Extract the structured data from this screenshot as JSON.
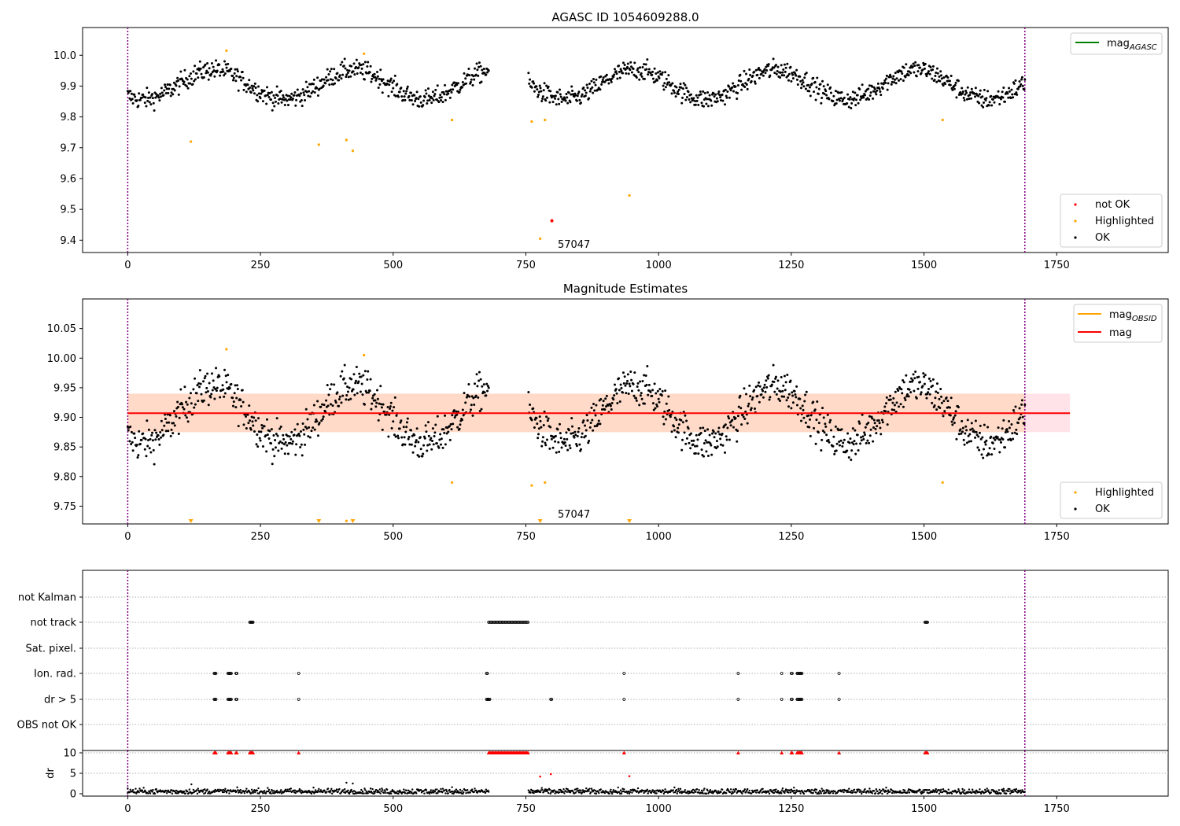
{
  "figure": {
    "colors": {
      "ok": "#000000",
      "highlight": "#ffa500",
      "not_ok": "#ff0000",
      "agasc_line": "#008000",
      "mag_line": "#ff0000",
      "band_inner": "#ffdac8",
      "band_outer": "#ffe3e8",
      "vline": "#800080",
      "grid": "#b0b0b0"
    }
  },
  "chart_data": [
    {
      "type": "scatter",
      "title": "AGASC ID 1054609288.0",
      "xlim": [
        -85,
        1960
      ],
      "ylim": [
        9.36,
        10.09
      ],
      "xticks": [
        0,
        250,
        500,
        750,
        1000,
        1250,
        1500,
        1750
      ],
      "yticks": [
        9.4,
        9.5,
        9.6,
        9.7,
        9.8,
        9.9,
        10.0
      ],
      "ytick_labels": [
        "9.4",
        "9.5",
        "9.6",
        "9.7",
        "9.8",
        "9.9",
        "10.0"
      ],
      "vlines": [
        0,
        1690
      ],
      "annotation": {
        "text": "57047",
        "x": 810,
        "y": 9.365
      },
      "series": [
        {
          "name": "mag_AGASC",
          "kind": "line",
          "sub": "AGASC",
          "legend_loc": "upper right",
          "x": [],
          "y": []
        },
        {
          "name": "not OK",
          "kind": "points",
          "color": "#ff0000",
          "x": [
            799
          ],
          "y": [
            9.463
          ]
        },
        {
          "name": "Highlighted",
          "kind": "points",
          "color": "#ffa500",
          "x": [
            119,
            186,
            360,
            412,
            424,
            445,
            611,
            761,
            777,
            786,
            945,
            1535
          ],
          "y": [
            9.72,
            10.015,
            9.71,
            9.725,
            9.69,
            10.005,
            9.79,
            9.785,
            9.405,
            9.79,
            9.545,
            9.79
          ]
        },
        {
          "name": "OK",
          "kind": "points",
          "color": "#000000",
          "wave_from": [
            0,
            680,
            755,
            1690
          ],
          "mean": 9.905,
          "amp": 0.048,
          "period": 265,
          "phase": 95,
          "noise": 0.016
        }
      ],
      "legend2_loc": "lower right"
    },
    {
      "type": "scatter",
      "title": "Magnitude Estimates",
      "xlim": [
        -85,
        1960
      ],
      "ylim": [
        9.72,
        10.1
      ],
      "xticks": [
        0,
        250,
        500,
        750,
        1000,
        1250,
        1500,
        1750
      ],
      "yticks": [
        9.75,
        9.8,
        9.85,
        9.9,
        9.95,
        10.0,
        10.05
      ],
      "ytick_labels": [
        "9.75",
        "9.80",
        "9.85",
        "9.90",
        "9.95",
        "10.00",
        "10.05"
      ],
      "vlines": [
        0,
        1690
      ],
      "annotation": {
        "text": "57047",
        "x": 810,
        "y": 9.725
      },
      "mag": 9.907,
      "band_inner": [
        9.875,
        9.94
      ],
      "band_outer": [
        9.875,
        9.94
      ],
      "band_x": [
        0,
        1775
      ],
      "series": [
        {
          "name": "mag_OBSID",
          "kind": "line",
          "sub": "OBSID",
          "color": "#ffa500",
          "x": [],
          "y": []
        },
        {
          "name": "mag",
          "kind": "line",
          "color": "#ff0000",
          "x": [
            0,
            1775
          ],
          "y": [
            9.907,
            9.907
          ]
        },
        {
          "name": "Highlighted",
          "kind": "points",
          "color": "#ffa500",
          "x": [
            186,
            445,
            611,
            761,
            786,
            1535,
            412
          ],
          "y": [
            10.015,
            10.005,
            9.79,
            9.785,
            9.79,
            9.79,
            9.725
          ]
        },
        {
          "name": "Highlighted-below",
          "kind": "markers-down",
          "color": "#ffa500",
          "x": [
            119,
            360,
            424,
            777,
            945
          ],
          "y": [
            9.72,
            9.72,
            9.72,
            9.72,
            9.72
          ]
        },
        {
          "name": "OK",
          "kind": "points",
          "color": "#000000"
        }
      ],
      "legend2_loc": "lower right"
    },
    {
      "type": "scatter",
      "title": "",
      "xlim": [
        -85,
        1960
      ],
      "flag_rows": [
        "not Kalman",
        "not track",
        "Sat. pixel.",
        "Ion. rad.",
        "dr > 5",
        "OBS not OK"
      ],
      "flags": {
        "not track": [
          [
            230,
            236
          ],
          [
            680,
            755
          ],
          [
            1502,
            1507
          ]
        ],
        "Ion. rad.": [
          [
            163,
            166
          ],
          [
            189,
            196
          ],
          [
            204,
            206
          ],
          [
            322,
            323
          ],
          [
            676,
            678
          ],
          [
            935,
            936
          ],
          [
            1150,
            1151
          ],
          [
            1232,
            1233
          ],
          [
            1250,
            1252
          ],
          [
            1261,
            1270
          ],
          [
            1340,
            1341
          ]
        ],
        "dr > 5": [
          [
            163,
            166
          ],
          [
            189,
            196
          ],
          [
            204,
            206
          ],
          [
            322,
            323
          ],
          [
            676,
            682
          ],
          [
            797,
            799
          ],
          [
            935,
            936
          ],
          [
            1150,
            1151
          ],
          [
            1232,
            1233
          ],
          [
            1250,
            1252
          ],
          [
            1261,
            1270
          ],
          [
            1340,
            1341
          ]
        ]
      },
      "vlines": [
        0,
        1690
      ]
    },
    {
      "type": "scatter",
      "title": "",
      "ylabel": "dr",
      "xlim": [
        -85,
        1960
      ],
      "ylim": [
        0,
        10
      ],
      "yticks": [
        0,
        5,
        10
      ],
      "ytick_labels": [
        "0",
        "5",
        "10"
      ],
      "xticks": [
        0,
        250,
        500,
        750,
        1000,
        1250,
        1500,
        1750
      ],
      "vlines": [
        0,
        1690
      ],
      "red_markers_at_10": [
        [
          163,
          166
        ],
        [
          189,
          196
        ],
        [
          204,
          206
        ],
        [
          230,
          236
        ],
        [
          322,
          323
        ],
        [
          680,
          755
        ],
        [
          935,
          936
        ],
        [
          1150,
          1151
        ],
        [
          1232,
          1233
        ],
        [
          1250,
          1252
        ],
        [
          1261,
          1270
        ],
        [
          1340,
          1341
        ],
        [
          1502,
          1507
        ]
      ],
      "red_points": {
        "x": [
          777,
          797,
          945
        ],
        "y": [
          4.2,
          4.8,
          4.3
        ]
      }
    }
  ]
}
